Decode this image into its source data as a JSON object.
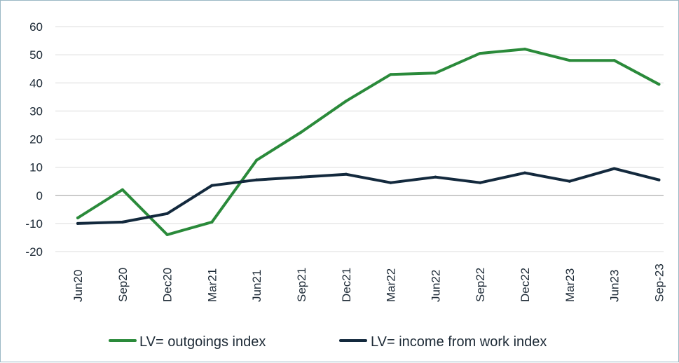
{
  "chart_data": {
    "type": "line",
    "title": "",
    "xlabel": "",
    "ylabel": "",
    "ylim": [
      -20,
      60
    ],
    "yticks": [
      60,
      50,
      40,
      30,
      20,
      10,
      0,
      -10,
      -20
    ],
    "ytick_labels": [
      "60",
      "50",
      "40",
      "30",
      "20",
      "10",
      "0",
      "-10",
      "-20"
    ],
    "categories": [
      "Jun20",
      "Sep20",
      "Dec20",
      "Mar21",
      "Jun21",
      "Sep21",
      "Dec21",
      "Mar22",
      "Jun22",
      "Sep22",
      "Dec22",
      "Mar23",
      "Jun23",
      "Sep-23"
    ],
    "grid": true,
    "legend_position": "bottom",
    "series": [
      {
        "name": "LV= outgoings index",
        "color": "#2a8a3a",
        "values": [
          -8,
          2,
          -14,
          -9.5,
          12.5,
          22.5,
          33.5,
          43,
          43.5,
          50.5,
          52,
          48,
          48,
          39.5
        ]
      },
      {
        "name": "LV= income from work index",
        "color": "#13293d",
        "values": [
          -10,
          -9.5,
          -6.5,
          3.5,
          5.5,
          6.5,
          7.5,
          4.5,
          6.5,
          4.5,
          8,
          5,
          9.5,
          5.5
        ]
      }
    ]
  }
}
